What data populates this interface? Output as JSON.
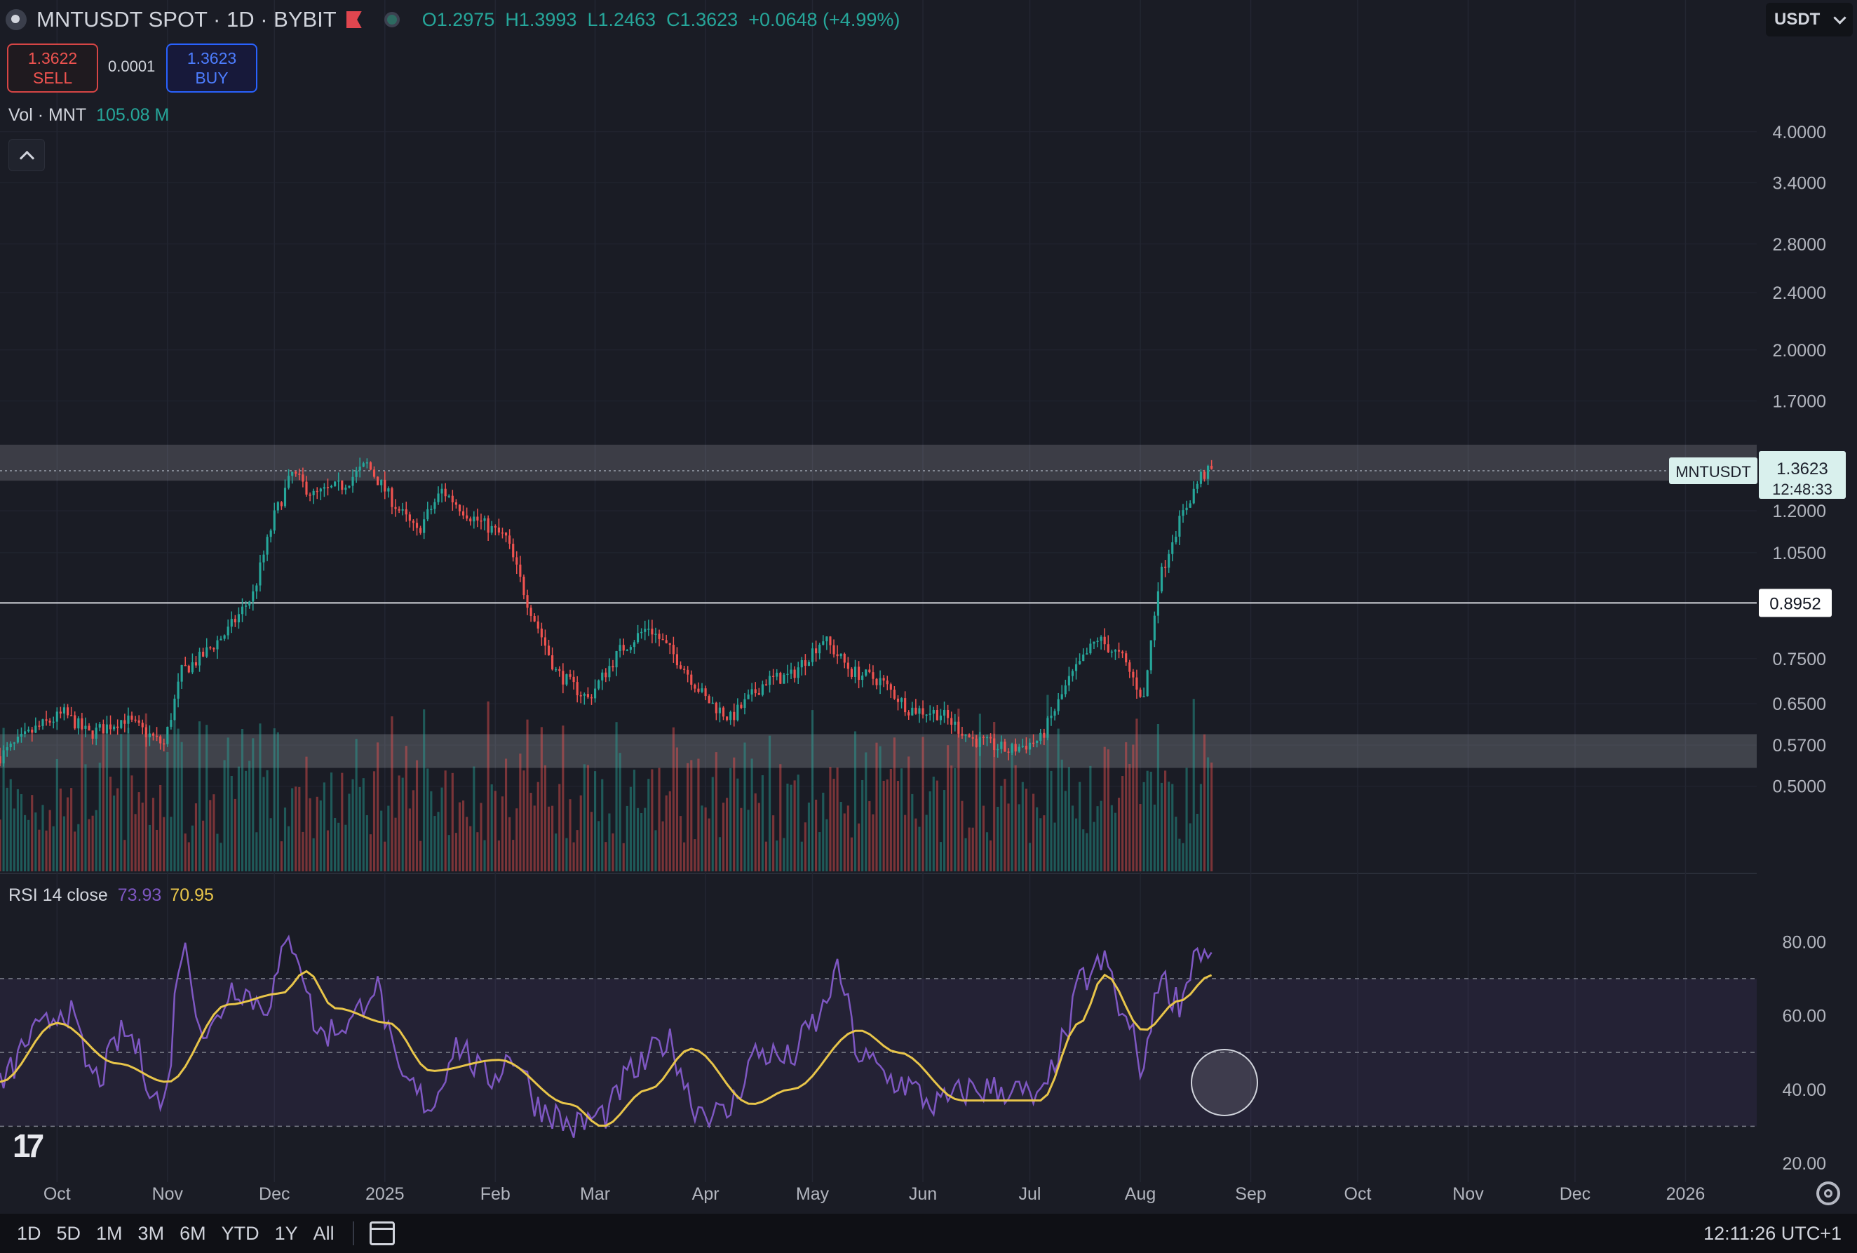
{
  "header": {
    "symbol_title": "MNTUSDT SPOT · 1D · BYBIT",
    "ohlc": {
      "o": "O1.2975",
      "h": "H1.3993",
      "l": "L1.2463",
      "c": "C1.3623",
      "change": "+0.0648 (+4.99%)"
    },
    "currency": "USDT"
  },
  "trade": {
    "sell_price": "1.3622",
    "sell_label": "SELL",
    "spread": "0.0001",
    "buy_price": "1.3623",
    "buy_label": "BUY"
  },
  "volume_legend": {
    "label": "Vol · MNT",
    "value": "105.08 M"
  },
  "rsi_legend": {
    "label": "RSI 14 close",
    "rsi": "73.93",
    "ma": "70.95"
  },
  "price_tag": {
    "symbol": "MNTUSDT",
    "price": "1.3623",
    "countdown": "12:48:33"
  },
  "level_tag": "0.8952",
  "bottom_bar": {
    "timeframes": [
      "1D",
      "5D",
      "1M",
      "3M",
      "6M",
      "YTD",
      "1Y",
      "All"
    ],
    "clock": "12:11:26 UTC+1"
  },
  "colors": {
    "up": "#26a69a",
    "down": "#ef5350",
    "rsi": "#7e57c2",
    "rsi_ma": "#e8c54a",
    "background": "#1a1c25"
  },
  "icons": [
    "symbol-logo-icon",
    "flag-icon",
    "market-status-icon",
    "chevron-down-icon",
    "collapse-up-icon",
    "calendar-icon",
    "settings-gear-icon",
    "tradingview-logo-icon"
  ],
  "chart_data": [
    {
      "type": "candlestick",
      "title": "MNTUSDT SPOT · 1D · BYBIT",
      "y_scale": "log",
      "ylim": [
        0.45,
        4.4
      ],
      "y_ticks": [
        "4.0000",
        "3.4000",
        "2.8000",
        "2.4000",
        "2.0000",
        "1.7000",
        "1.2000",
        "1.0500",
        "0.7500",
        "0.6500",
        "0.5700",
        "0.5000"
      ],
      "x_ticks": [
        "Oct",
        "Nov",
        "Dec",
        "2025",
        "Feb",
        "Mar",
        "Apr",
        "May",
        "Jun",
        "Jul",
        "Aug",
        "Sep",
        "Oct",
        "Nov",
        "Dec",
        "2026"
      ],
      "x_range": [
        "2024-09-15",
        "2026-01-20"
      ],
      "resistance_zone": [
        1.32,
        1.48
      ],
      "support_zone": [
        0.53,
        0.59
      ],
      "horizontal_line": 0.8952,
      "last_price": 1.3623,
      "anchors": [
        [
          "2024-09-15",
          0.55
        ],
        [
          "2024-09-25",
          0.6
        ],
        [
          "2024-10-03",
          0.63
        ],
        [
          "2024-10-10",
          0.59
        ],
        [
          "2024-10-20",
          0.62
        ],
        [
          "2024-10-31",
          0.57
        ],
        [
          "2024-11-05",
          0.72
        ],
        [
          "2024-11-10",
          0.75
        ],
        [
          "2024-11-18",
          0.82
        ],
        [
          "2024-11-25",
          0.92
        ],
        [
          "2024-12-01",
          1.18
        ],
        [
          "2024-12-06",
          1.35
        ],
        [
          "2024-12-12",
          1.26
        ],
        [
          "2024-12-20",
          1.3
        ],
        [
          "2024-12-27",
          1.39
        ],
        [
          "2025-01-04",
          1.22
        ],
        [
          "2025-01-10",
          1.12
        ],
        [
          "2025-01-17",
          1.28
        ],
        [
          "2025-01-25",
          1.18
        ],
        [
          "2025-02-04",
          1.1
        ],
        [
          "2025-02-10",
          0.9
        ],
        [
          "2025-02-18",
          0.72
        ],
        [
          "2025-02-27",
          0.66
        ],
        [
          "2025-03-08",
          0.77
        ],
        [
          "2025-03-16",
          0.83
        ],
        [
          "2025-03-25",
          0.74
        ],
        [
          "2025-04-01",
          0.66
        ],
        [
          "2025-04-08",
          0.62
        ],
        [
          "2025-04-18",
          0.7
        ],
        [
          "2025-04-25",
          0.71
        ],
        [
          "2025-05-04",
          0.8
        ],
        [
          "2025-05-12",
          0.72
        ],
        [
          "2025-05-20",
          0.7
        ],
        [
          "2025-05-28",
          0.64
        ],
        [
          "2025-06-06",
          0.63
        ],
        [
          "2025-06-15",
          0.58
        ],
        [
          "2025-06-25",
          0.56
        ],
        [
          "2025-07-04",
          0.58
        ],
        [
          "2025-07-12",
          0.7
        ],
        [
          "2025-07-20",
          0.8
        ],
        [
          "2025-07-27",
          0.75
        ],
        [
          "2025-08-02",
          0.66
        ],
        [
          "2025-08-06",
          0.95
        ],
        [
          "2025-08-10",
          1.1
        ],
        [
          "2025-08-14",
          1.22
        ],
        [
          "2025-08-18",
          1.34
        ],
        [
          "2025-08-21",
          1.3623
        ]
      ]
    },
    {
      "type": "line",
      "title": "RSI 14 close",
      "ylim": [
        20,
        85
      ],
      "y_ticks": [
        "80.00",
        "60.00",
        "40.00",
        "20.00"
      ],
      "bands": [
        70,
        50,
        30
      ],
      "series": [
        {
          "name": "RSI",
          "points": [
            [
              "2024-09-15",
              42
            ],
            [
              "2024-09-25",
              55
            ],
            [
              "2024-10-03",
              62
            ],
            [
              "2024-10-12",
              43
            ],
            [
              "2024-10-20",
              55
            ],
            [
              "2024-10-31",
              36
            ],
            [
              "2024-11-05",
              78
            ],
            [
              "2024-11-12",
              55
            ],
            [
              "2024-11-20",
              68
            ],
            [
              "2024-11-28",
              63
            ],
            [
              "2024-12-06",
              80
            ],
            [
              "2024-12-14",
              55
            ],
            [
              "2024-12-22",
              58
            ],
            [
              "2024-12-29",
              68
            ],
            [
              "2025-01-06",
              42
            ],
            [
              "2025-01-14",
              36
            ],
            [
              "2025-01-21",
              52
            ],
            [
              "2025-01-30",
              43
            ],
            [
              "2025-02-06",
              49
            ],
            [
              "2025-02-14",
              35
            ],
            [
              "2025-02-23",
              30
            ],
            [
              "2025-03-03",
              33
            ],
            [
              "2025-03-12",
              45
            ],
            [
              "2025-03-21",
              53
            ],
            [
              "2025-03-30",
              35
            ],
            [
              "2025-04-06",
              33
            ],
            [
              "2025-04-16",
              50
            ],
            [
              "2025-04-24",
              48
            ],
            [
              "2025-05-02",
              58
            ],
            [
              "2025-05-08",
              71
            ],
            [
              "2025-05-15",
              48
            ],
            [
              "2025-05-25",
              42
            ],
            [
              "2025-06-05",
              36
            ],
            [
              "2025-06-15",
              40
            ],
            [
              "2025-06-25",
              40
            ],
            [
              "2025-07-04",
              37
            ],
            [
              "2025-07-10",
              52
            ],
            [
              "2025-07-16",
              70
            ],
            [
              "2025-07-22",
              74
            ],
            [
              "2025-07-28",
              58
            ],
            [
              "2025-08-02",
              46
            ],
            [
              "2025-08-06",
              70
            ],
            [
              "2025-08-12",
              64
            ],
            [
              "2025-08-17",
              78
            ],
            [
              "2025-08-21",
              73.93
            ]
          ]
        },
        {
          "name": "RSI-based MA",
          "points": [
            [
              "2024-09-15",
              42
            ],
            [
              "2024-10-01",
              58
            ],
            [
              "2024-10-18",
              47
            ],
            [
              "2024-11-01",
              42
            ],
            [
              "2024-11-18",
              63
            ],
            [
              "2024-12-03",
              66
            ],
            [
              "2024-12-10",
              72
            ],
            [
              "2024-12-18",
              62
            ],
            [
              "2025-01-02",
              58
            ],
            [
              "2025-01-14",
              45
            ],
            [
              "2025-02-02",
              48
            ],
            [
              "2025-02-22",
              36
            ],
            [
              "2025-03-03",
              30
            ],
            [
              "2025-03-16",
              40
            ],
            [
              "2025-03-28",
              51
            ],
            [
              "2025-04-14",
              36
            ],
            [
              "2025-04-25",
              40
            ],
            [
              "2025-05-14",
              56
            ],
            [
              "2025-05-25",
              50
            ],
            [
              "2025-06-12",
              37
            ],
            [
              "2025-07-04",
              37
            ],
            [
              "2025-07-15",
              58
            ],
            [
              "2025-07-22",
              71
            ],
            [
              "2025-08-02",
              56
            ],
            [
              "2025-08-12",
              64
            ],
            [
              "2025-08-21",
              70.95
            ]
          ]
        }
      ]
    }
  ]
}
